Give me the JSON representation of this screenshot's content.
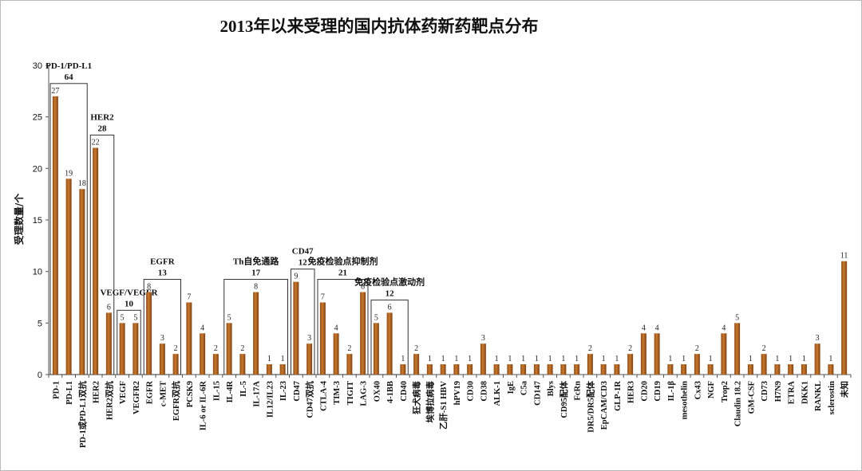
{
  "chart_data": {
    "type": "bar",
    "title": "2013年以来受理的国内抗体药新药靶点分布",
    "xlabel": "",
    "ylabel": "受理数量/个",
    "ylim": [
      0,
      30
    ],
    "yticks": [
      0,
      5,
      10,
      15,
      20,
      25,
      30
    ],
    "grid": false,
    "legend": "none",
    "bar_color": "#c8782d",
    "categories": [
      "PD-1",
      "PD-L1",
      "PD-1或PD-L1双抗",
      "HER2",
      "HER2双抗",
      "VEGF",
      "VEGFR2",
      "EGFR",
      "c-MET",
      "EGFR双抗",
      "PCSK9",
      "IL-6 or IL-6R",
      "IL-15",
      "IL-4R",
      "IL-5",
      "IL-17A",
      "IL12/IL23",
      "IL-23",
      "CD47",
      "CD47双抗",
      "CTLA-4",
      "TIM-3",
      "TIGIT",
      "LAG-3",
      "OX40",
      "4-1BB",
      "CD40",
      "狂犬病毒",
      "埃博拉病毒",
      "乙肝-S1 HBV",
      "hPV19",
      "CD30",
      "CD38",
      "ALK-1",
      "IgE",
      "C5a",
      "CD147",
      "Blys",
      "CD95配体",
      "FcRn",
      "DR5/DR5配体",
      "EpCAM/CD3",
      "GLP-1R",
      "HER3",
      "CD20",
      "CD19",
      "IL-1β",
      "mesothelin",
      "Cx43",
      "NGF",
      "Trop2",
      "Claudin 18.2",
      "GM-CSF",
      "CD73",
      "H7N9",
      "ETRA",
      "DKK1",
      "RANKL",
      "sclerostin",
      "未知"
    ],
    "values": [
      27,
      19,
      18,
      22,
      6,
      5,
      5,
      8,
      3,
      2,
      7,
      4,
      2,
      5,
      2,
      8,
      1,
      1,
      9,
      3,
      7,
      4,
      2,
      8,
      5,
      6,
      1,
      2,
      1,
      1,
      1,
      1,
      3,
      1,
      1,
      1,
      1,
      1,
      1,
      1,
      2,
      1,
      1,
      2,
      4,
      4,
      1,
      1,
      2,
      1,
      4,
      5,
      1,
      2,
      1,
      1,
      1,
      3,
      1,
      11
    ],
    "groups": [
      {
        "name": "PD-1/PD-L1",
        "total": "64",
        "start": 0,
        "end": 2
      },
      {
        "name": "HER2",
        "total": "28",
        "start": 3,
        "end": 4
      },
      {
        "name": "VEGF/VEGFR",
        "total": "10",
        "start": 5,
        "end": 6
      },
      {
        "name": "EGFR",
        "total": "13",
        "start": 7,
        "end": 9
      },
      {
        "name": "Th自免通路",
        "total": "17",
        "start": 13,
        "end": 17
      },
      {
        "name": "CD47",
        "total": "12",
        "start": 18,
        "end": 19
      },
      {
        "name": "免疫检验点抑制剂",
        "total": "21",
        "start": 20,
        "end": 23
      },
      {
        "name": "免疫检验点激动剂",
        "total": "12",
        "start": 24,
        "end": 26
      }
    ]
  }
}
